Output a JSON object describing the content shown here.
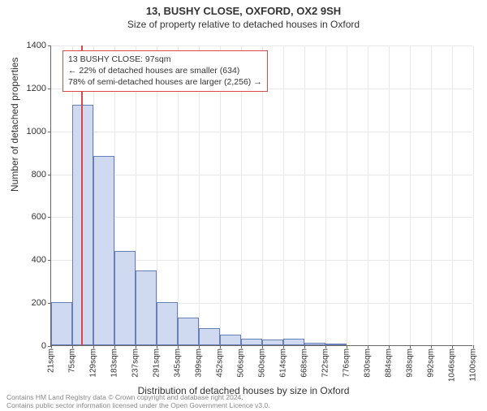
{
  "title_main": "13, BUSHY CLOSE, OXFORD, OX2 9SH",
  "title_sub": "Size of property relative to detached houses in Oxford",
  "ylabel": "Number of detached properties",
  "xlabel": "Distribution of detached houses by size in Oxford",
  "chart": {
    "type": "histogram",
    "bar_fill": "#cfd9f0",
    "bar_border": "#6a7fb5",
    "grid_color": "#e8e8e8",
    "axis_color": "#666666",
    "marker_color": "#d9484a",
    "background": "#ffffff",
    "xmin": 21,
    "xmax": 1100,
    "ymin": 0,
    "ymax": 1400,
    "yticks": [
      0,
      200,
      400,
      600,
      800,
      1000,
      1200,
      1400
    ],
    "xticks": [
      21,
      75,
      129,
      183,
      237,
      291,
      345,
      399,
      452,
      506,
      560,
      614,
      668,
      722,
      776,
      830,
      884,
      938,
      992,
      1046,
      1100
    ],
    "xtick_labels": [
      "21sqm",
      "75sqm",
      "129sqm",
      "183sqm",
      "237sqm",
      "291sqm",
      "345sqm",
      "399sqm",
      "452sqm",
      "506sqm",
      "560sqm",
      "614sqm",
      "668sqm",
      "722sqm",
      "776sqm",
      "830sqm",
      "884sqm",
      "938sqm",
      "992sqm",
      "1046sqm",
      "1100sqm"
    ],
    "bars": [
      {
        "x0": 21,
        "x1": 75,
        "y": 200
      },
      {
        "x0": 75,
        "x1": 129,
        "y": 1120
      },
      {
        "x0": 129,
        "x1": 183,
        "y": 880
      },
      {
        "x0": 183,
        "x1": 237,
        "y": 440
      },
      {
        "x0": 237,
        "x1": 291,
        "y": 350
      },
      {
        "x0": 291,
        "x1": 345,
        "y": 200
      },
      {
        "x0": 345,
        "x1": 399,
        "y": 130
      },
      {
        "x0": 399,
        "x1": 452,
        "y": 80
      },
      {
        "x0": 452,
        "x1": 506,
        "y": 50
      },
      {
        "x0": 506,
        "x1": 560,
        "y": 30
      },
      {
        "x0": 560,
        "x1": 614,
        "y": 25
      },
      {
        "x0": 614,
        "x1": 668,
        "y": 30
      },
      {
        "x0": 668,
        "x1": 722,
        "y": 10
      },
      {
        "x0": 722,
        "x1": 776,
        "y": 5
      },
      {
        "x0": 776,
        "x1": 830,
        "y": 0
      },
      {
        "x0": 830,
        "x1": 884,
        "y": 0
      },
      {
        "x0": 884,
        "x1": 938,
        "y": 0
      },
      {
        "x0": 938,
        "x1": 992,
        "y": 0
      },
      {
        "x0": 992,
        "x1": 1046,
        "y": 0
      },
      {
        "x0": 1046,
        "x1": 1100,
        "y": 0
      }
    ],
    "marker_x": 97
  },
  "infobox": {
    "line1": "13 BUSHY CLOSE: 97sqm",
    "line2": "← 22% of detached houses are smaller (634)",
    "line3": "78% of semi-detached houses are larger (2,256) →"
  },
  "footer": {
    "line1": "Contains HM Land Registry data © Crown copyright and database right 2024.",
    "line2": "Contains public sector information licensed under the Open Government Licence v3.0."
  }
}
